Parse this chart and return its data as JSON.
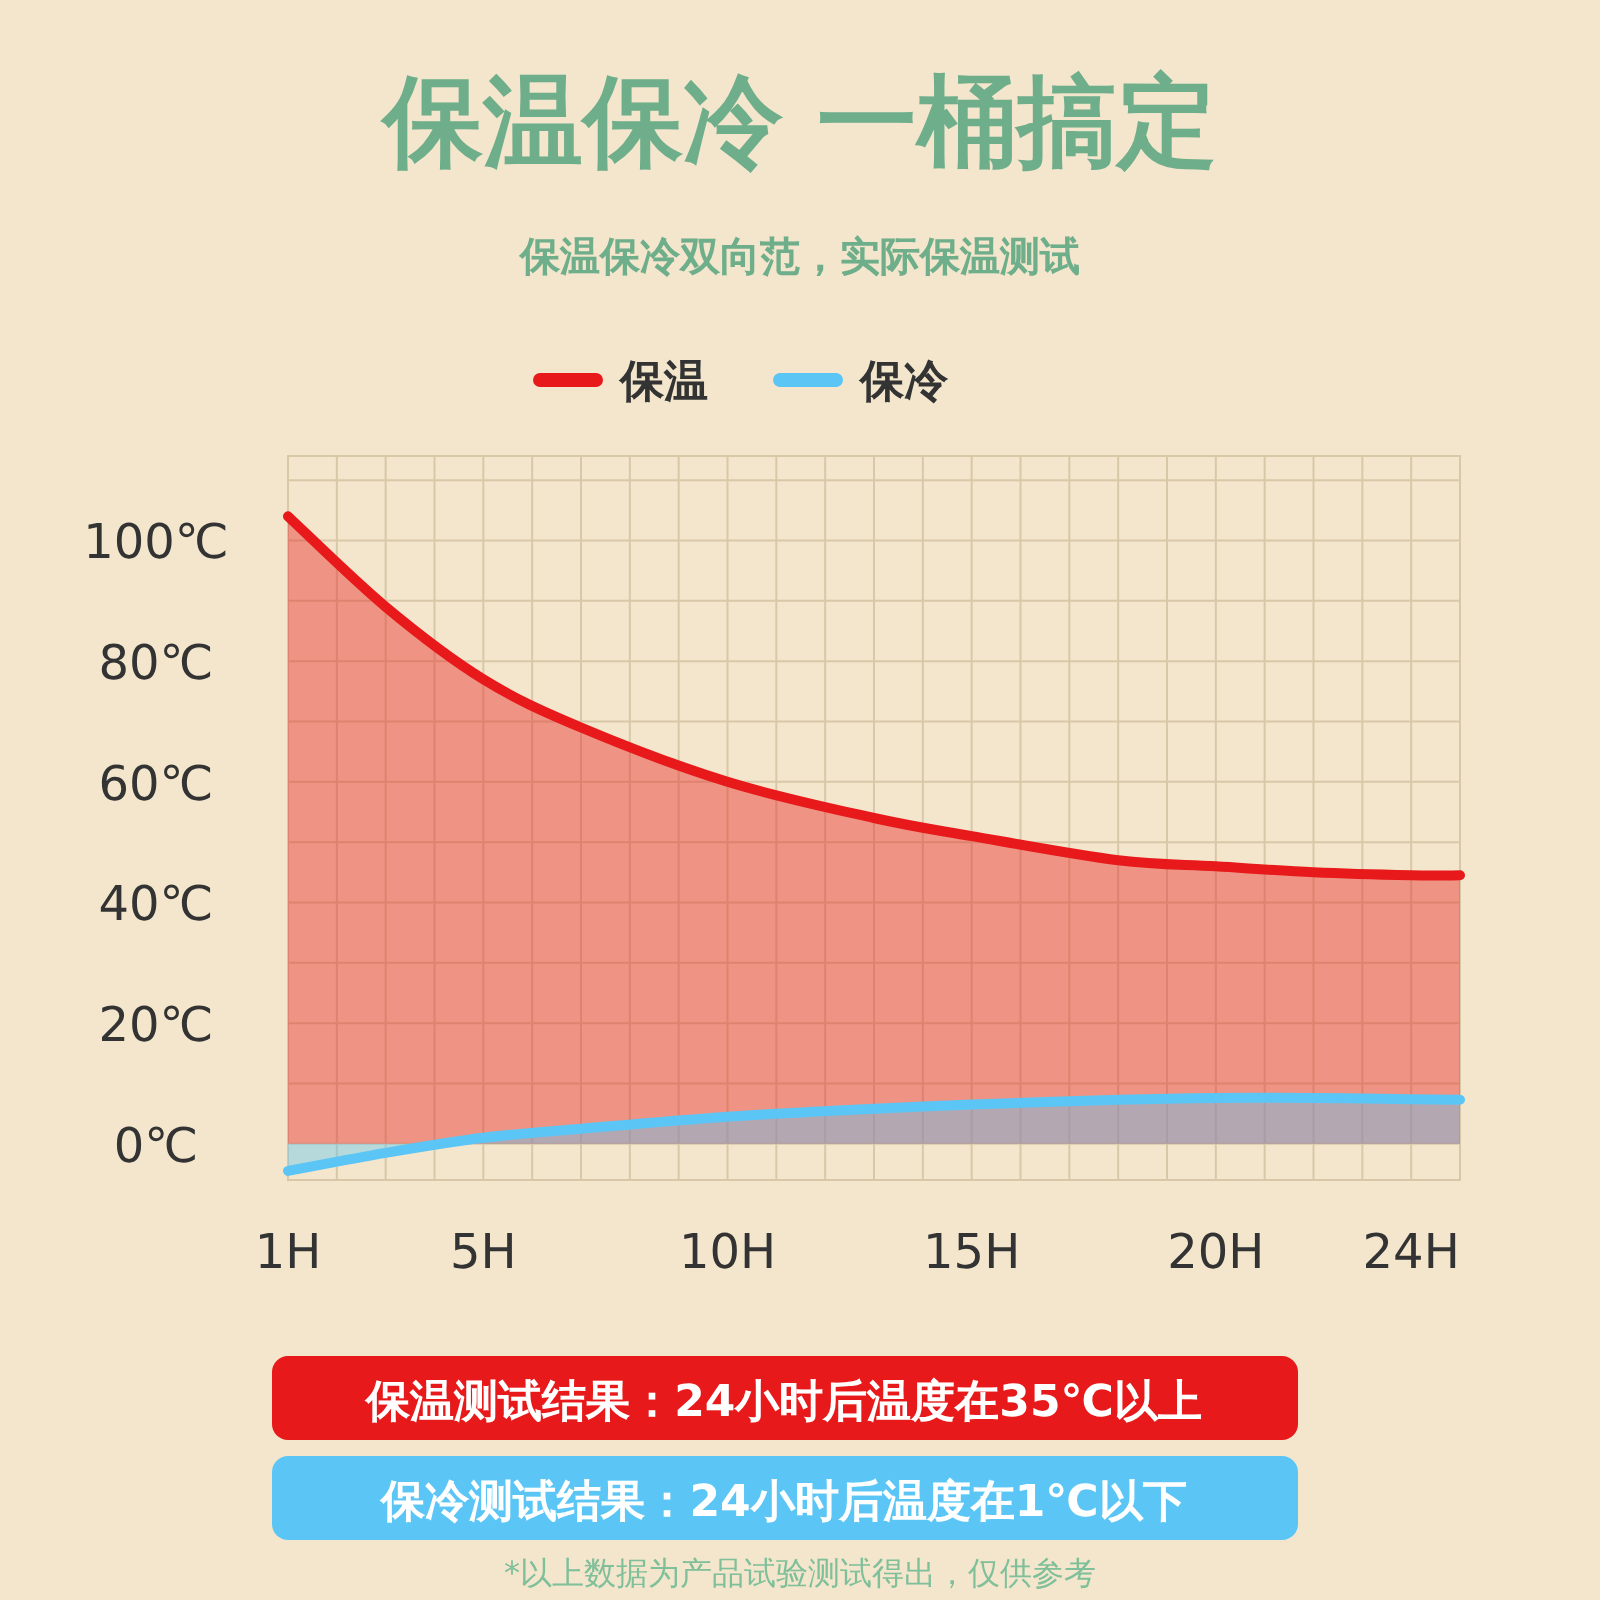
{
  "chart_data": {
    "type": "area",
    "title": "保温保冷  一桶搞定",
    "subtitle": "保温保冷双向范，实际保温测试",
    "legend": "top",
    "grid": true,
    "xlim": [
      1,
      25
    ],
    "xticks": [
      {
        "value": 1,
        "label": "1H"
      },
      {
        "value": 2,
        "label": null
      },
      {
        "value": 3,
        "label": null
      },
      {
        "value": 4,
        "label": null
      },
      {
        "value": 5,
        "label": "5H"
      },
      {
        "value": 6,
        "label": null
      },
      {
        "value": 7,
        "label": null
      },
      {
        "value": 8,
        "label": null
      },
      {
        "value": 9,
        "label": null
      },
      {
        "value": 10,
        "label": "10H"
      },
      {
        "value": 11,
        "label": null
      },
      {
        "value": 12,
        "label": null
      },
      {
        "value": 13,
        "label": null
      },
      {
        "value": 14,
        "label": null
      },
      {
        "value": 15,
        "label": "15H"
      },
      {
        "value": 16,
        "label": null
      },
      {
        "value": 17,
        "label": null
      },
      {
        "value": 18,
        "label": null
      },
      {
        "value": 19,
        "label": null
      },
      {
        "value": 20,
        "label": "20H"
      },
      {
        "value": 21,
        "label": null
      },
      {
        "value": 22,
        "label": null
      },
      {
        "value": 23,
        "label": null
      },
      {
        "value": 24,
        "label": "24H"
      }
    ],
    "ylim": [
      -6,
      114
    ],
    "yticks": [
      {
        "value": 0,
        "label": "0℃"
      },
      {
        "value": 10,
        "label": null
      },
      {
        "value": 20,
        "label": "20℃"
      },
      {
        "value": 30,
        "label": null
      },
      {
        "value": 40,
        "label": "40℃"
      },
      {
        "value": 50,
        "label": null
      },
      {
        "value": 60,
        "label": "60℃"
      },
      {
        "value": 70,
        "label": null
      },
      {
        "value": 80,
        "label": "80℃"
      },
      {
        "value": 90,
        "label": null
      },
      {
        "value": 100,
        "label": "100℃"
      },
      {
        "value": 110,
        "label": null
      }
    ],
    "series": [
      {
        "name": "保温",
        "color": "#e8191a",
        "x": [
          1,
          3,
          5,
          7,
          10,
          13,
          15,
          18,
          20,
          22,
          24,
          25
        ],
        "values": [
          104,
          89,
          77,
          69,
          60,
          54,
          51,
          47,
          46,
          45,
          44.5,
          44.5
        ]
      },
      {
        "name": "保冷",
        "color": "#5bc6f5",
        "x": [
          1,
          3,
          5,
          7,
          10,
          13,
          15,
          18,
          20,
          22,
          24,
          25
        ],
        "values": [
          -4.5,
          -1.5,
          1,
          2.5,
          4.5,
          5.8,
          6.5,
          7.3,
          7.6,
          7.6,
          7.4,
          7.3
        ]
      }
    ],
    "annotations": [
      "保温测试结果：24小时后温度在35℃以上",
      "保冷测试结果：24小时后温度在1℃以下",
      "*以上数据为产品试验测试得出，仅供参考"
    ]
  }
}
